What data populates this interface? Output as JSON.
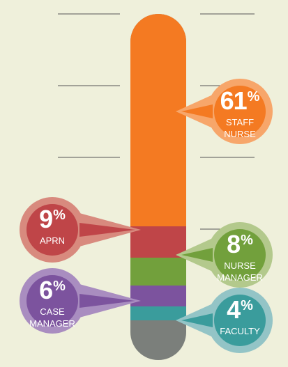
{
  "chart_data": {
    "type": "bar",
    "categories": [
      "FACULTY",
      "CASE MANAGER",
      "NURSE MANAGER",
      "APRN",
      "STAFF NURSE"
    ],
    "values": [
      4,
      6,
      8,
      9,
      61
    ],
    "unit": "%",
    "colors": [
      "#3a9c9c",
      "#7c539e",
      "#72a03c",
      "#bf4548",
      "#f47a22"
    ],
    "ring_colors": [
      "#93c4c6",
      "#a98dc0",
      "#b3c98c",
      "#d88a7e",
      "#f7a66a"
    ]
  }
}
